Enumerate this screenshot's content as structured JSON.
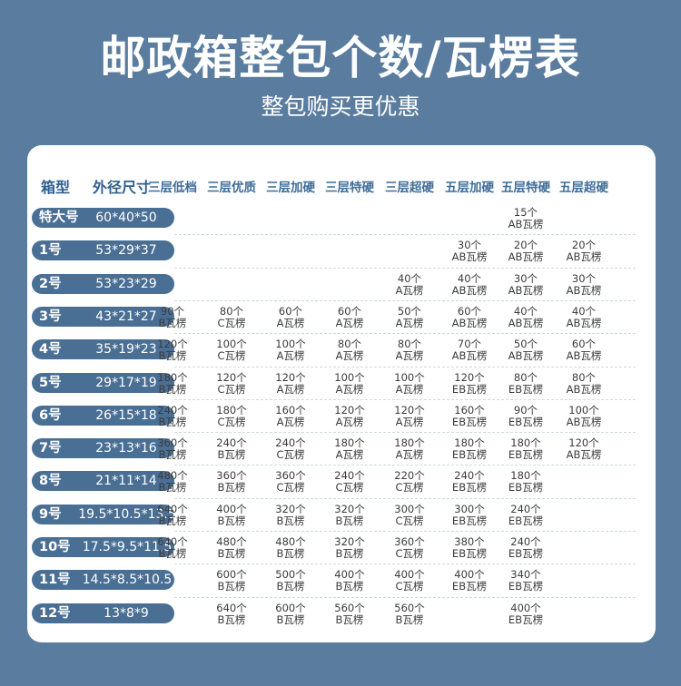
{
  "header": {
    "title": "邮政箱整包个数/瓦楞表",
    "subtitle": "整包购买更优惠"
  },
  "table": {
    "col_box": "箱型",
    "col_size": "外径尺寸",
    "columns": [
      "三层低档",
      "三层优质",
      "三层加硬",
      "三层特硬",
      "三层超硬",
      "五层加硬",
      "五层特硬",
      "五层超硬"
    ],
    "rows": [
      {
        "name": "特大号",
        "size": "60*40*50",
        "cells": [
          null,
          null,
          null,
          null,
          null,
          null,
          {
            "count": "15个",
            "type": "AB瓦楞"
          },
          null
        ]
      },
      {
        "name": "1号",
        "size": "53*29*37",
        "cells": [
          null,
          null,
          null,
          null,
          null,
          {
            "count": "30个",
            "type": "AB瓦楞"
          },
          {
            "count": "20个",
            "type": "AB瓦楞"
          },
          {
            "count": "20个",
            "type": "AB瓦楞"
          }
        ]
      },
      {
        "name": "2号",
        "size": "53*23*29",
        "cells": [
          null,
          null,
          null,
          null,
          {
            "count": "40个",
            "type": "A瓦楞"
          },
          {
            "count": "40个",
            "type": "AB瓦楞"
          },
          {
            "count": "30个",
            "type": "AB瓦楞"
          },
          {
            "count": "30个",
            "type": "AB瓦楞"
          }
        ]
      },
      {
        "name": "3号",
        "size": "43*21*27",
        "cells": [
          {
            "count": "90个",
            "type": "B瓦楞"
          },
          {
            "count": "80个",
            "type": "C瓦楞"
          },
          {
            "count": "60个",
            "type": "A瓦楞"
          },
          {
            "count": "60个",
            "type": "A瓦楞"
          },
          {
            "count": "50个",
            "type": "A瓦楞"
          },
          {
            "count": "60个",
            "type": "AB瓦楞"
          },
          {
            "count": "40个",
            "type": "AB瓦楞"
          },
          {
            "count": "40个",
            "type": "AB瓦楞"
          }
        ]
      },
      {
        "name": "4号",
        "size": "35*19*23",
        "cells": [
          {
            "count": "120个",
            "type": "B瓦楞"
          },
          {
            "count": "100个",
            "type": "C瓦楞"
          },
          {
            "count": "100个",
            "type": "A瓦楞"
          },
          {
            "count": "80个",
            "type": "A瓦楞"
          },
          {
            "count": "80个",
            "type": "A瓦楞"
          },
          {
            "count": "70个",
            "type": "AB瓦楞"
          },
          {
            "count": "50个",
            "type": "AB瓦楞"
          },
          {
            "count": "60个",
            "type": "AB瓦楞"
          }
        ]
      },
      {
        "name": "5号",
        "size": "29*17*19",
        "cells": [
          {
            "count": "180个",
            "type": "B瓦楞"
          },
          {
            "count": "120个",
            "type": "C瓦楞"
          },
          {
            "count": "120个",
            "type": "A瓦楞"
          },
          {
            "count": "100个",
            "type": "A瓦楞"
          },
          {
            "count": "100个",
            "type": "A瓦楞"
          },
          {
            "count": "120个",
            "type": "EB瓦楞"
          },
          {
            "count": "80个",
            "type": "EB瓦楞"
          },
          {
            "count": "80个",
            "type": "AB瓦楞"
          }
        ]
      },
      {
        "name": "6号",
        "size": "26*15*18",
        "cells": [
          {
            "count": "240个",
            "type": "B瓦楞"
          },
          {
            "count": "180个",
            "type": "C瓦楞"
          },
          {
            "count": "160个",
            "type": "A瓦楞"
          },
          {
            "count": "120个",
            "type": "A瓦楞"
          },
          {
            "count": "120个",
            "type": "A瓦楞"
          },
          {
            "count": "160个",
            "type": "EB瓦楞"
          },
          {
            "count": "90个",
            "type": "EB瓦楞"
          },
          {
            "count": "100个",
            "type": "AB瓦楞"
          }
        ]
      },
      {
        "name": "7号",
        "size": "23*13*16",
        "cells": [
          {
            "count": "360个",
            "type": "B瓦楞"
          },
          {
            "count": "240个",
            "type": "B瓦楞"
          },
          {
            "count": "240个",
            "type": "C瓦楞"
          },
          {
            "count": "180个",
            "type": "A瓦楞"
          },
          {
            "count": "180个",
            "type": "A瓦楞"
          },
          {
            "count": "180个",
            "type": "EB瓦楞"
          },
          {
            "count": "180个",
            "type": "EB瓦楞"
          },
          {
            "count": "120个",
            "type": "AB瓦楞"
          }
        ]
      },
      {
        "name": "8号",
        "size": "21*11*14",
        "cells": [
          {
            "count": "480个",
            "type": "B瓦楞"
          },
          {
            "count": "360个",
            "type": "B瓦楞"
          },
          {
            "count": "360个",
            "type": "C瓦楞"
          },
          {
            "count": "240个",
            "type": "C瓦楞"
          },
          {
            "count": "220个",
            "type": "C瓦楞"
          },
          {
            "count": "240个",
            "type": "EB瓦楞"
          },
          {
            "count": "180个",
            "type": "EB瓦楞"
          },
          null
        ]
      },
      {
        "name": "9号",
        "size": "19.5*10.5*13.5",
        "cells": [
          {
            "count": "640个",
            "type": "B瓦楞"
          },
          {
            "count": "400个",
            "type": "B瓦楞"
          },
          {
            "count": "320个",
            "type": "B瓦楞"
          },
          {
            "count": "320个",
            "type": "B瓦楞"
          },
          {
            "count": "300个",
            "type": "C瓦楞"
          },
          {
            "count": "300个",
            "type": "EB瓦楞"
          },
          {
            "count": "240个",
            "type": "EB瓦楞"
          },
          null
        ]
      },
      {
        "name": "10号",
        "size": "17.5*9.5*11.5",
        "cells": [
          {
            "count": "640个",
            "type": "B瓦楞"
          },
          {
            "count": "480个",
            "type": "B瓦楞"
          },
          {
            "count": "480个",
            "type": "B瓦楞"
          },
          {
            "count": "320个",
            "type": "B瓦楞"
          },
          {
            "count": "360个",
            "type": "C瓦楞"
          },
          {
            "count": "380个",
            "type": "EB瓦楞"
          },
          {
            "count": "240个",
            "type": "EB瓦楞"
          },
          null
        ]
      },
      {
        "name": "11号",
        "size": "14.5*8.5*10.5",
        "cells": [
          null,
          {
            "count": "600个",
            "type": "B瓦楞"
          },
          {
            "count": "500个",
            "type": "B瓦楞"
          },
          {
            "count": "400个",
            "type": "B瓦楞"
          },
          {
            "count": "400个",
            "type": "C瓦楞"
          },
          {
            "count": "400个",
            "type": "EB瓦楞"
          },
          {
            "count": "340个",
            "type": "EB瓦楞"
          },
          null
        ]
      },
      {
        "name": "12号",
        "size": "13*8*9",
        "cells": [
          null,
          {
            "count": "640个",
            "type": "B瓦楞"
          },
          {
            "count": "600个",
            "type": "B瓦楞"
          },
          {
            "count": "560个",
            "type": "B瓦楞"
          },
          {
            "count": "560个",
            "type": "B瓦楞"
          },
          null,
          {
            "count": "400个",
            "type": "EB瓦楞"
          },
          null
        ]
      }
    ]
  },
  "colors": {
    "background": "#597c9f",
    "pill": "#4a6f95",
    "header_text": "#3f6d99"
  }
}
